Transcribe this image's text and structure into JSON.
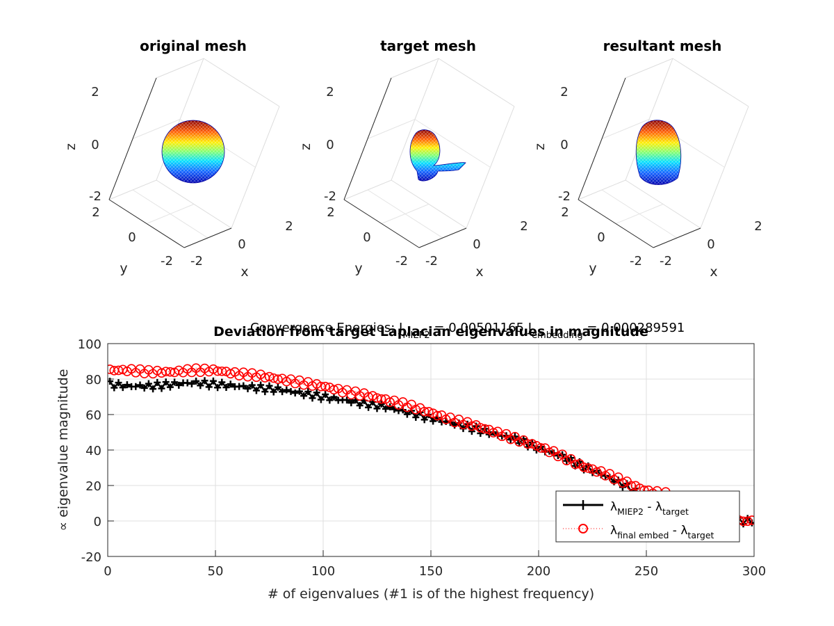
{
  "chart_data": [
    {
      "type": "surface-3d",
      "title": "original mesh",
      "xlabel": "x",
      "ylabel": "y",
      "zlabel": "z",
      "xlim": [
        -2,
        2
      ],
      "ylim": [
        -2,
        2
      ],
      "zlim": [
        -2,
        2
      ],
      "xticks": [
        "-2",
        "0",
        "2"
      ],
      "yticks": [
        "-2",
        "0",
        "2"
      ],
      "zticks": [
        "-2",
        "0",
        "2"
      ],
      "shape": "sphere",
      "colormap": "jet",
      "grid": true
    },
    {
      "type": "surface-3d",
      "title": "target mesh",
      "xlabel": "x",
      "ylabel": "y",
      "zlabel": "z",
      "xlim": [
        -2,
        2
      ],
      "ylim": [
        -2,
        2
      ],
      "zlim": [
        -2,
        2
      ],
      "xticks": [
        "-2",
        "0",
        "2"
      ],
      "yticks": [
        "-2",
        "0",
        "2"
      ],
      "zticks": [
        "-2",
        "0",
        "2"
      ],
      "shape": "head-like mesh",
      "colormap": "jet",
      "grid": true
    },
    {
      "type": "surface-3d",
      "title": "resultant mesh",
      "xlabel": "x",
      "ylabel": "y",
      "zlabel": "z",
      "xlim": [
        -2,
        2
      ],
      "ylim": [
        -2,
        2
      ],
      "zlim": [
        -2,
        2
      ],
      "xticks": [
        "-2",
        "0",
        "2"
      ],
      "yticks": [
        "-2",
        "0",
        "2"
      ],
      "zticks": [
        "-2",
        "0",
        "2"
      ],
      "shape": "head-like mesh",
      "colormap": "jet",
      "grid": true
    },
    {
      "type": "line",
      "title": "Deviation from target Laplacian eigenvalues in magnitude",
      "subtitle": {
        "lead": "Convergence Energies: J",
        "sub1": "MIEP2",
        "mid": " = 0.00501165    J",
        "sub2": "embedding",
        "tail": " = 0.000289591"
      },
      "xlabel": "# of eigenvalues (#1 is of the highest frequency)",
      "ylabel": "∝ eigenvalue magnitude",
      "xlim": [
        0,
        300
      ],
      "ylim": [
        -20,
        100
      ],
      "xticks": [
        0,
        50,
        100,
        150,
        200,
        250,
        300
      ],
      "yticks": [
        -20,
        0,
        20,
        40,
        60,
        80,
        100
      ],
      "grid": true,
      "legend_position": "bottom-right",
      "legend": [
        {
          "main": "λ",
          "sub": "MIEP2",
          "mid": " - λ",
          "sub2": "target"
        },
        {
          "main": "λ",
          "sub": "final embed",
          "mid": " - λ",
          "sub2": "target"
        }
      ],
      "series": [
        {
          "name": "λMIEP2 - λtarget",
          "color": "#000000",
          "marker": "plus",
          "line": "solid",
          "points": [
            [
              1,
              77
            ],
            [
              10,
              76
            ],
            [
              20,
              76
            ],
            [
              30,
              77
            ],
            [
              40,
              78
            ],
            [
              50,
              77
            ],
            [
              60,
              76
            ],
            [
              70,
              75
            ],
            [
              80,
              74
            ],
            [
              90,
              72
            ],
            [
              100,
              70
            ],
            [
              110,
              68
            ],
            [
              120,
              66
            ],
            [
              130,
              64
            ],
            [
              140,
              61
            ],
            [
              150,
              58
            ],
            [
              160,
              55
            ],
            [
              170,
              52
            ],
            [
              180,
              49
            ],
            [
              190,
              46
            ],
            [
              200,
              41
            ],
            [
              210,
              37
            ],
            [
              220,
              31
            ],
            [
              230,
              26
            ],
            [
              240,
              20
            ],
            [
              250,
              13
            ],
            [
              260,
              6
            ],
            [
              270,
              2
            ],
            [
              280,
              1
            ],
            [
              290,
              0
            ],
            [
              300,
              0
            ]
          ]
        },
        {
          "name": "λfinal embed - λtarget",
          "color": "#ff0000",
          "marker": "circle",
          "line": "dotted",
          "points": [
            [
              1,
              85
            ],
            [
              10,
              85
            ],
            [
              20,
              84
            ],
            [
              30,
              84
            ],
            [
              40,
              85
            ],
            [
              50,
              85
            ],
            [
              60,
              83
            ],
            [
              70,
              82
            ],
            [
              80,
              80
            ],
            [
              90,
              78
            ],
            [
              100,
              76
            ],
            [
              110,
              73
            ],
            [
              120,
              71
            ],
            [
              130,
              68
            ],
            [
              140,
              65
            ],
            [
              150,
              61
            ],
            [
              160,
              57
            ],
            [
              170,
              54
            ],
            [
              180,
              50
            ],
            [
              190,
              46
            ],
            [
              200,
              42
            ],
            [
              210,
              37
            ],
            [
              220,
              31
            ],
            [
              230,
              27
            ],
            [
              240,
              22
            ],
            [
              250,
              17
            ],
            [
              260,
              15
            ],
            [
              290,
              0
            ],
            [
              295,
              0
            ],
            [
              300,
              0
            ]
          ]
        }
      ]
    }
  ]
}
